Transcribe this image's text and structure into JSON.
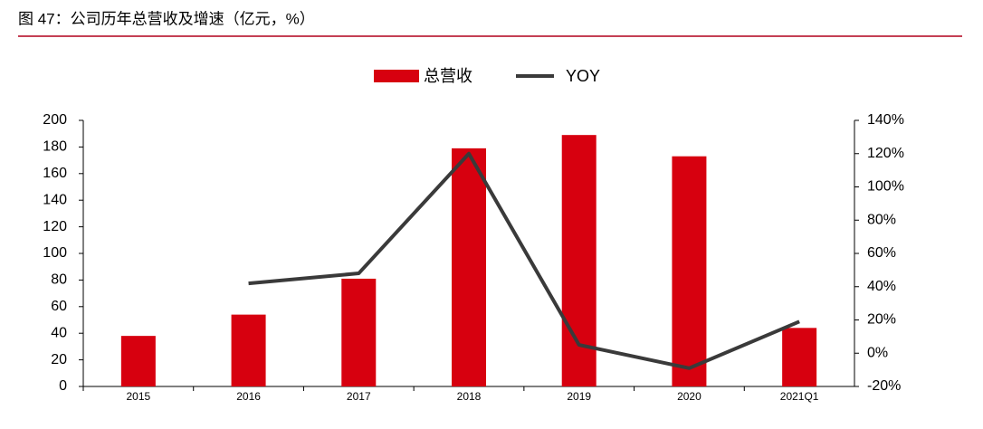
{
  "chart_data": {
    "type": "bar",
    "title": "图 47：公司历年总营收及增速（亿元，%）",
    "categories": [
      "2015",
      "2016",
      "2017",
      "2018",
      "2019",
      "2020",
      "2021Q1"
    ],
    "series": [
      {
        "name": "总营收",
        "type": "bar",
        "color": "#d7000f",
        "values": [
          38,
          54,
          81,
          179,
          189,
          173,
          44
        ]
      },
      {
        "name": "YOY",
        "type": "line",
        "axis": "y2",
        "color": "#3a3a3a",
        "values": [
          null,
          42,
          48,
          120,
          5,
          -9,
          19
        ]
      }
    ],
    "ylim": [
      0,
      200
    ],
    "yticks": [
      0,
      20,
      40,
      60,
      80,
      100,
      120,
      140,
      160,
      180,
      200
    ],
    "y2lim": [
      -20,
      140
    ],
    "y2ticks": [
      {
        "value": -20,
        "label": "-20%"
      },
      {
        "value": 0,
        "label": "0%"
      },
      {
        "value": 20,
        "label": "20%"
      },
      {
        "value": 40,
        "label": "40%"
      },
      {
        "value": 60,
        "label": "60%"
      },
      {
        "value": 80,
        "label": "80%"
      },
      {
        "value": 100,
        "label": "100%"
      },
      {
        "value": 120,
        "label": "120%"
      },
      {
        "value": 140,
        "label": "140%"
      }
    ],
    "legend": "top",
    "grid": false
  }
}
